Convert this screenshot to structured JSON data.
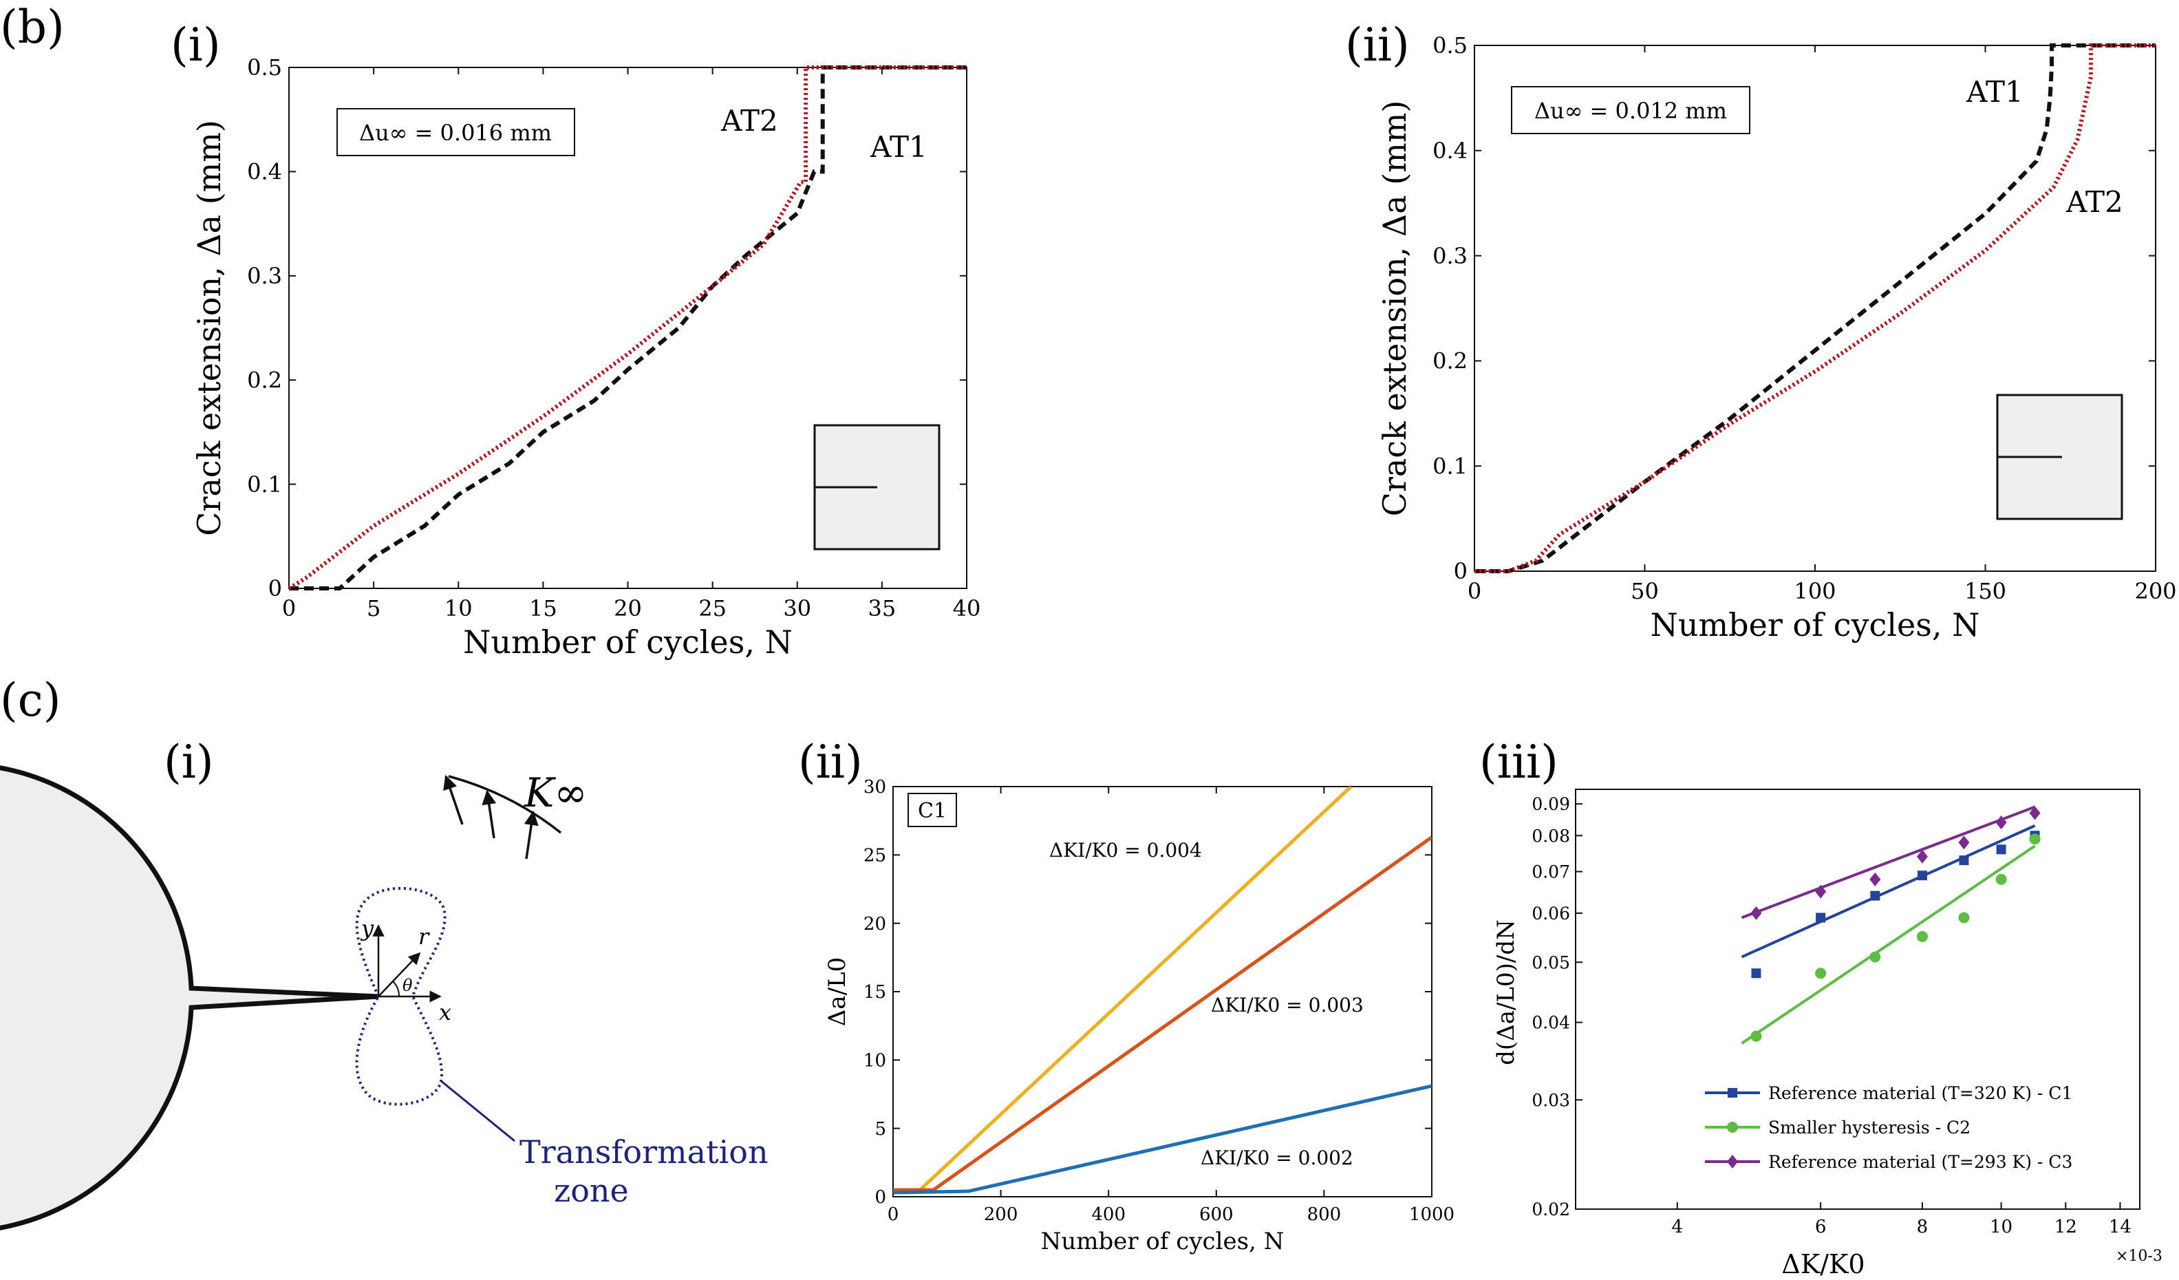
{
  "figure": {
    "part_b": "(b)",
    "part_c": "(c)",
    "panel_b_i": "(i)",
    "panel_b_ii": "(ii)",
    "panel_c_i": "(i)",
    "panel_c_ii": "(ii)",
    "panel_c_iii": "(iii)"
  },
  "diagram": {
    "k_inf_label": "K∞",
    "y_label": "y",
    "r_label": "r",
    "theta_label": "θ",
    "x_label": "x",
    "zone_label_line1": "Transformation",
    "zone_label_line2": "zone"
  },
  "colors": {
    "dashed": "#111111",
    "dotted": "#b5121b",
    "c_blue": "#1f6fb4",
    "c_orange": "#d95319",
    "c_yellow": "#edb120",
    "iii_blue": "#24439a",
    "iii_green": "#5cbd42",
    "iii_purple": "#7b2a8e",
    "zone": "#1a237e"
  },
  "chart_data": [
    {
      "id": "b_i",
      "type": "line",
      "xlabel": "Number of cycles, N",
      "ylabel": "Crack extension, Δa (mm)",
      "xlim": [
        0,
        40
      ],
      "ylim": [
        0,
        0.5
      ],
      "xticks": [
        "0",
        "5",
        "10",
        "15",
        "20",
        "25",
        "30",
        "35",
        "40"
      ],
      "yticks": [
        "0",
        "0.1",
        "0.2",
        "0.3",
        "0.4",
        "0.5"
      ],
      "annotation": "Δu∞ = 0.016 mm",
      "series": [
        {
          "name": "AT1",
          "style": "dashed",
          "x": [
            0,
            3,
            5,
            8,
            10,
            13,
            15,
            18,
            20,
            23,
            25,
            27,
            30,
            31,
            31.5,
            31.5,
            40
          ],
          "y": [
            0,
            0,
            0.03,
            0.06,
            0.09,
            0.12,
            0.15,
            0.18,
            0.21,
            0.25,
            0.29,
            0.32,
            0.36,
            0.4,
            0.4,
            0.5,
            0.5
          ]
        },
        {
          "name": "AT2",
          "style": "dotted",
          "x": [
            0,
            1,
            5,
            10,
            15,
            20,
            25,
            28,
            30.2,
            30.5,
            30.5,
            40
          ],
          "y": [
            0,
            0.01,
            0.06,
            0.11,
            0.165,
            0.225,
            0.29,
            0.33,
            0.39,
            0.39,
            0.5,
            0.5
          ]
        }
      ]
    },
    {
      "id": "b_ii",
      "type": "line",
      "xlabel": "Number of cycles, N",
      "ylabel": "Crack extension, Δa (mm)",
      "xlim": [
        0,
        200
      ],
      "ylim": [
        0,
        0.5
      ],
      "xticks": [
        "0",
        "50",
        "100",
        "150",
        "200"
      ],
      "yticks": [
        "0",
        "0.1",
        "0.2",
        "0.3",
        "0.4",
        "0.5"
      ],
      "annotation": "Δu∞ = 0.012 mm",
      "series": [
        {
          "name": "AT1",
          "style": "dashed",
          "x": [
            0,
            10,
            20,
            30,
            50,
            75,
            100,
            125,
            150,
            165,
            168,
            169,
            169.5,
            169.5,
            200
          ],
          "y": [
            0,
            0,
            0.01,
            0.035,
            0.085,
            0.145,
            0.21,
            0.275,
            0.34,
            0.39,
            0.42,
            0.45,
            0.48,
            0.5,
            0.5
          ]
        },
        {
          "name": "AT2",
          "style": "dotted",
          "x": [
            0,
            10,
            18,
            25,
            50,
            75,
            100,
            125,
            150,
            170,
            177,
            179,
            181,
            181,
            200
          ],
          "y": [
            0,
            0,
            0.01,
            0.035,
            0.085,
            0.14,
            0.19,
            0.245,
            0.305,
            0.365,
            0.41,
            0.44,
            0.47,
            0.5,
            0.5
          ]
        }
      ]
    },
    {
      "id": "c_ii",
      "type": "line",
      "xlabel": "Number of cycles, N",
      "ylabel": "Δa/L0",
      "xlim": [
        0,
        1000
      ],
      "ylim": [
        0,
        30
      ],
      "xticks": [
        "0",
        "200",
        "400",
        "600",
        "800",
        "1000"
      ],
      "yticks": [
        "0",
        "5",
        "10",
        "15",
        "20",
        "25",
        "30"
      ],
      "badge": "C1",
      "series": [
        {
          "name": "ΔKI/K0 = 0.004",
          "color": "yellow",
          "x": [
            0,
            50,
            850
          ],
          "y": [
            0.5,
            0.5,
            30
          ]
        },
        {
          "name": "ΔKI/K0 = 0.003",
          "color": "orange",
          "x": [
            0,
            75,
            1000
          ],
          "y": [
            0.5,
            0.5,
            26.3
          ]
        },
        {
          "name": "ΔKI/K0 = 0.002",
          "color": "blue",
          "x": [
            0,
            140,
            1000
          ],
          "y": [
            0.3,
            0.4,
            8.1
          ]
        }
      ]
    },
    {
      "id": "c_iii",
      "type": "scatter",
      "xscale": "log",
      "yscale": "log",
      "xlabel": "ΔK/K0",
      "ylabel": "d(Δa/L0)/dN",
      "x_multiplier": "×10-3",
      "xlim": [
        0.003,
        0.0148
      ],
      "ylim": [
        0.02,
        0.095
      ],
      "xticks": [
        "4",
        "6",
        "8",
        "10",
        "12",
        "14"
      ],
      "yticks": [
        "0.02",
        "0.03",
        "0.04",
        "0.05",
        "0.06",
        "0.07",
        "0.08",
        "0.09"
      ],
      "legend_position": "bottom-right",
      "series": [
        {
          "name": "Reference material (T=320 K) - C1",
          "color": "blue",
          "marker": "square",
          "x": [
            0.005,
            0.006,
            0.007,
            0.008,
            0.009,
            0.01,
            0.011
          ],
          "y": [
            0.048,
            0.059,
            0.064,
            0.069,
            0.073,
            0.076,
            0.08
          ],
          "fit_x": [
            0.0048,
            0.011
          ],
          "fit_y": [
            0.051,
            0.083
          ]
        },
        {
          "name": "Smaller hysteresis - C2",
          "color": "green",
          "marker": "circle",
          "x": [
            0.005,
            0.006,
            0.007,
            0.008,
            0.009,
            0.01,
            0.011
          ],
          "y": [
            0.038,
            0.048,
            0.051,
            0.055,
            0.059,
            0.068,
            0.079
          ],
          "fit_x": [
            0.0048,
            0.011
          ],
          "fit_y": [
            0.037,
            0.077
          ]
        },
        {
          "name": "Reference material (T=293 K) - C3",
          "color": "purple",
          "marker": "diamond",
          "x": [
            0.005,
            0.006,
            0.007,
            0.008,
            0.009,
            0.01,
            0.011
          ],
          "y": [
            0.06,
            0.065,
            0.068,
            0.074,
            0.078,
            0.084,
            0.087
          ],
          "fit_x": [
            0.0048,
            0.011
          ],
          "fit_y": [
            0.059,
            0.089
          ]
        }
      ]
    }
  ]
}
